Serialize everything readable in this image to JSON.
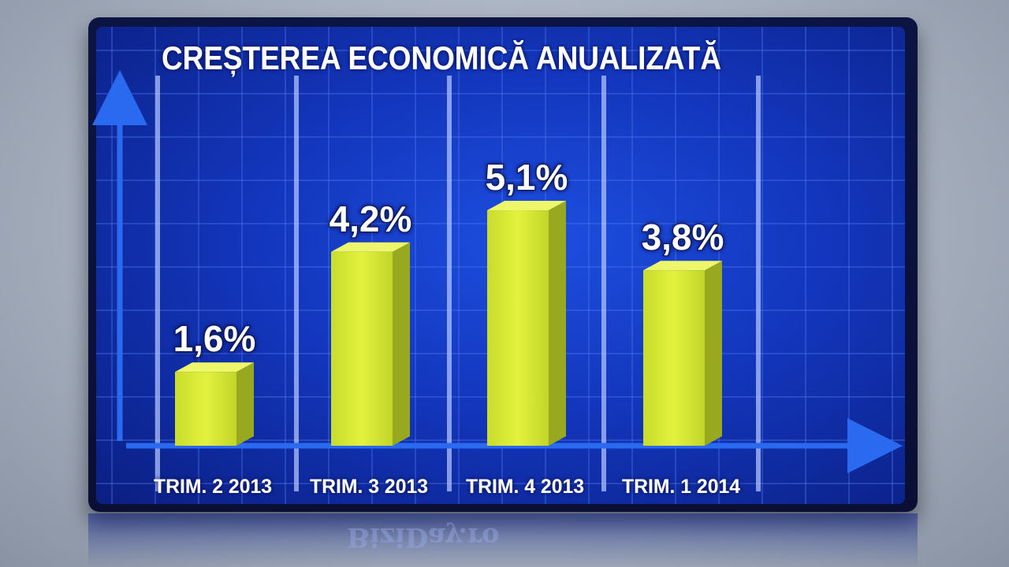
{
  "chart_data": {
    "type": "bar",
    "title": "CREȘTEREA ECONOMICĂ ANUALIZATĂ",
    "categories": [
      "TRIM. 2 2013",
      "TRIM. 3 2013",
      "TRIM. 4 2013",
      "TRIM. 1 2014"
    ],
    "values": [
      1.6,
      4.2,
      5.1,
      3.8
    ],
    "data_labels": [
      "1,6%",
      "4,2%",
      "5,1%",
      "3,8%"
    ],
    "unit": "%",
    "ylim": [
      0,
      5.8
    ],
    "grid": true,
    "bar_color": "#d8ea3a"
  },
  "watermark": "BiziDay.ro",
  "colors": {
    "panel": "#1336bd",
    "grid": "#4f7cf0",
    "text": "#ffffff",
    "label_outline": "#0a1250"
  }
}
